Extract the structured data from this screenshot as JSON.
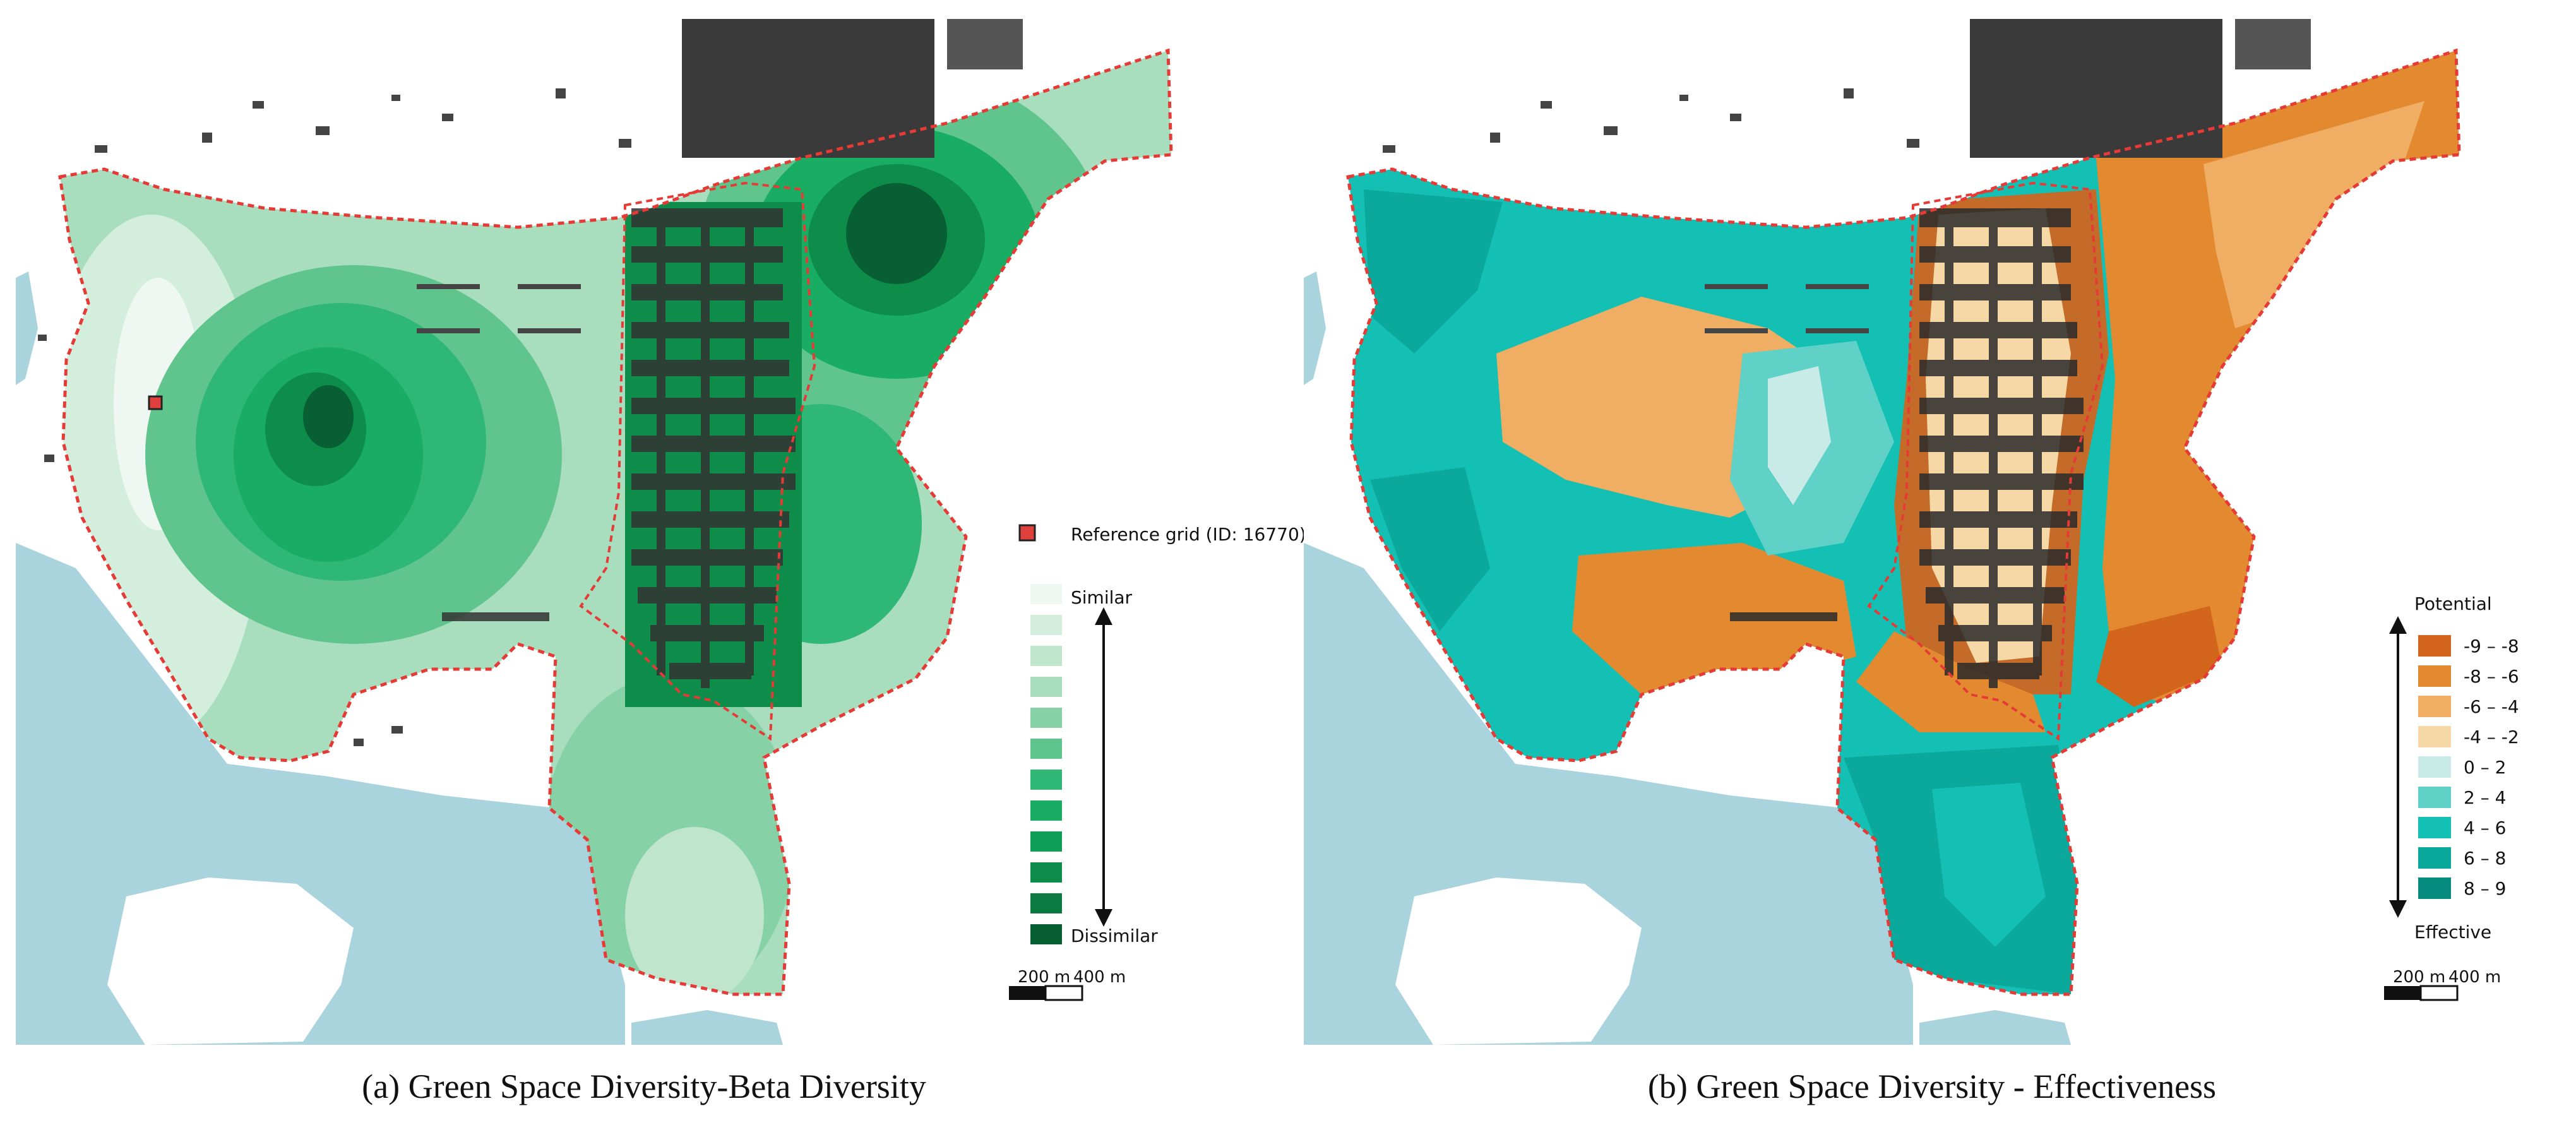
{
  "panels": [
    {
      "caption": "(a) Green Space Diversity-Beta Diversity",
      "legend": {
        "reference_label": "Reference grid (ID: 16770)",
        "top_label": "Similar",
        "bottom_label": "Dissimilar",
        "colors": [
          "#eef7f1",
          "#d4eedd",
          "#bfe6cd",
          "#a8ddbd",
          "#86d2a6",
          "#5fc58d",
          "#2fb776",
          "#18ad63",
          "#0f9e56",
          "#0d8c4a",
          "#0a7a40",
          "#075f33"
        ]
      },
      "scale": {
        "label_1": "200 m",
        "label_2": "400 m"
      }
    },
    {
      "caption": "(b) Green Space Diversity - Effectiveness",
      "legend": {
        "top_label": "Potential",
        "bottom_label": "Effective",
        "classes": [
          {
            "label": "-9 – -8",
            "color": "#d2641c"
          },
          {
            "label": "-8 – -6",
            "color": "#e38a30"
          },
          {
            "label": "-6 – -4",
            "color": "#efae63"
          },
          {
            "label": "-4 – -2",
            "color": "#f6d8a6"
          },
          {
            "label": "0 – 2",
            "color": "#c9ebe7"
          },
          {
            "label": "2 – 4",
            "color": "#5fd1c6"
          },
          {
            "label": "4 – 6",
            "color": "#14c0b4"
          },
          {
            "label": "6 – 8",
            "color": "#0aa99b"
          },
          {
            "label": "8 – 9",
            "color": "#078b7e"
          }
        ]
      },
      "scale": {
        "label_1": "200 m",
        "label_2": "400 m"
      }
    }
  ],
  "colors": {
    "water": "#a9d3dd",
    "boundary": "#e53a35",
    "buildings": "#333333",
    "reference_marker": "#e0403c"
  }
}
